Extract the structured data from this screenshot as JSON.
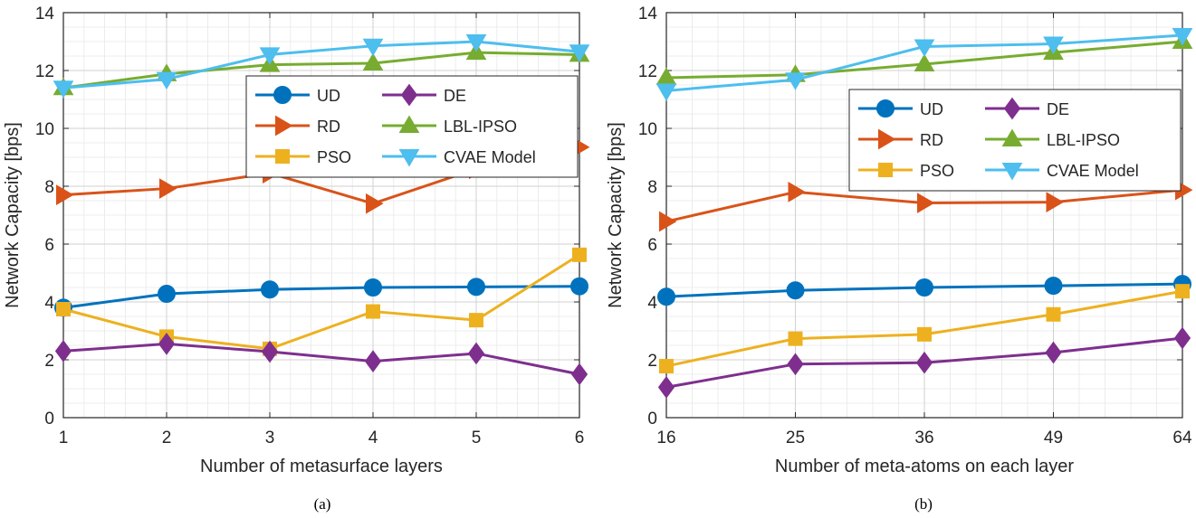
{
  "chart_data": [
    {
      "type": "line",
      "caption": "(a)",
      "xlabel": "Number of metasurface layers",
      "ylabel": "Network Capacity [bps]",
      "x": [
        1,
        2,
        3,
        4,
        5,
        6
      ],
      "xticks": [
        "1",
        "2",
        "3",
        "4",
        "5",
        "6"
      ],
      "yticks": [
        "0",
        "2",
        "4",
        "6",
        "8",
        "10",
        "12",
        "14"
      ],
      "ylim": [
        0,
        14
      ],
      "grid": true,
      "legend_placement": "upper-right",
      "series": [
        {
          "name": "UD",
          "color": "#0072BD",
          "marker": "circle",
          "values": [
            3.8,
            4.28,
            4.43,
            4.5,
            4.52,
            4.54
          ]
        },
        {
          "name": "RD",
          "color": "#D95319",
          "marker": "triangle-right",
          "values": [
            7.7,
            7.92,
            8.45,
            7.4,
            8.6,
            9.35
          ]
        },
        {
          "name": "PSO",
          "color": "#EDB120",
          "marker": "square",
          "values": [
            3.75,
            2.8,
            2.38,
            3.67,
            3.37,
            5.63
          ]
        },
        {
          "name": "DE",
          "color": "#7E2F8E",
          "marker": "diamond",
          "values": [
            2.3,
            2.55,
            2.28,
            1.95,
            2.22,
            1.5
          ]
        },
        {
          "name": "LBL-IPSO",
          "color": "#77AC30",
          "marker": "triangle-up",
          "values": [
            11.4,
            11.88,
            12.2,
            12.25,
            12.62,
            12.55
          ]
        },
        {
          "name": "CVAE Model",
          "color": "#4DBEEE",
          "marker": "triangle-down",
          "values": [
            11.4,
            11.7,
            12.55,
            12.85,
            13.0,
            12.65
          ]
        }
      ]
    },
    {
      "type": "line",
      "caption": "(b)",
      "xlabel": "Number of meta-atoms on each layer",
      "ylabel": "Network Capacity [bps]",
      "x": [
        16,
        25,
        36,
        49,
        64
      ],
      "xticks": [
        "16",
        "25",
        "36",
        "49",
        "64"
      ],
      "yticks": [
        "0",
        "2",
        "4",
        "6",
        "8",
        "10",
        "12",
        "14"
      ],
      "ylim": [
        0,
        14
      ],
      "grid": true,
      "legend_placement": "right",
      "series": [
        {
          "name": "UD",
          "color": "#0072BD",
          "marker": "circle",
          "values": [
            4.18,
            4.4,
            4.5,
            4.56,
            4.62
          ]
        },
        {
          "name": "RD",
          "color": "#D95319",
          "marker": "triangle-right",
          "values": [
            6.78,
            7.8,
            7.42,
            7.45,
            7.87
          ]
        },
        {
          "name": "PSO",
          "color": "#EDB120",
          "marker": "square",
          "values": [
            1.78,
            2.73,
            2.88,
            3.57,
            4.37
          ]
        },
        {
          "name": "DE",
          "color": "#7E2F8E",
          "marker": "diamond",
          "values": [
            1.05,
            1.85,
            1.9,
            2.25,
            2.75
          ]
        },
        {
          "name": "LBL-IPSO",
          "color": "#77AC30",
          "marker": "triangle-up",
          "values": [
            11.75,
            11.85,
            12.22,
            12.62,
            13.0
          ]
        },
        {
          "name": "CVAE Model",
          "color": "#4DBEEE",
          "marker": "triangle-down",
          "values": [
            11.3,
            11.68,
            12.83,
            12.92,
            13.22
          ]
        }
      ]
    }
  ]
}
